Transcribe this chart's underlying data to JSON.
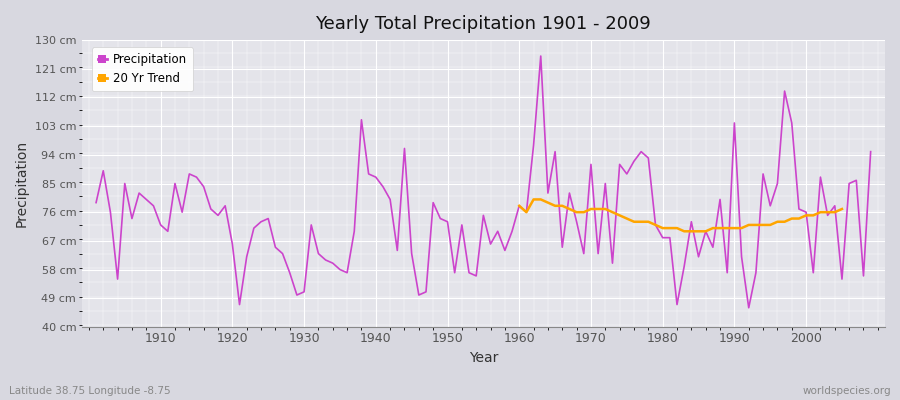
{
  "title": "Yearly Total Precipitation 1901 - 2009",
  "xlabel": "Year",
  "ylabel": "Precipitation",
  "subtitle": "Latitude 38.75 Longitude -8.75",
  "watermark": "worldspecies.org",
  "precip_color": "#CC44CC",
  "trend_color": "#FFA500",
  "bg_color": "#D8D8E0",
  "plot_bg_color": "#E4E4EA",
  "grid_color": "#FFFFFF",
  "ylim": [
    40,
    130
  ],
  "yticks": [
    40,
    49,
    58,
    67,
    76,
    85,
    94,
    103,
    112,
    121,
    130
  ],
  "ytick_labels": [
    "40 cm",
    "49 cm",
    "58 cm",
    "67 cm",
    "76 cm",
    "85 cm",
    "94 cm",
    "103 cm",
    "112 cm",
    "121 cm",
    "130 cm"
  ],
  "xlim_left": 1899,
  "xlim_right": 2011,
  "years": [
    1901,
    1902,
    1903,
    1904,
    1905,
    1906,
    1907,
    1908,
    1909,
    1910,
    1911,
    1912,
    1913,
    1914,
    1915,
    1916,
    1917,
    1918,
    1919,
    1920,
    1921,
    1922,
    1923,
    1924,
    1925,
    1926,
    1927,
    1928,
    1929,
    1930,
    1931,
    1932,
    1933,
    1934,
    1935,
    1936,
    1937,
    1938,
    1939,
    1940,
    1941,
    1942,
    1943,
    1944,
    1945,
    1946,
    1947,
    1948,
    1949,
    1950,
    1951,
    1952,
    1953,
    1954,
    1955,
    1956,
    1957,
    1958,
    1959,
    1960,
    1961,
    1962,
    1963,
    1964,
    1965,
    1966,
    1967,
    1968,
    1969,
    1970,
    1971,
    1972,
    1973,
    1974,
    1975,
    1976,
    1977,
    1978,
    1979,
    1980,
    1981,
    1982,
    1983,
    1984,
    1985,
    1986,
    1987,
    1988,
    1989,
    1990,
    1991,
    1992,
    1993,
    1994,
    1995,
    1996,
    1997,
    1998,
    1999,
    2000,
    2001,
    2002,
    2003,
    2004,
    2005,
    2006,
    2007,
    2008,
    2009
  ],
  "precipitation": [
    79,
    89,
    76,
    55,
    85,
    74,
    82,
    80,
    78,
    72,
    70,
    85,
    76,
    88,
    87,
    84,
    77,
    75,
    78,
    66,
    47,
    62,
    71,
    73,
    74,
    65,
    63,
    57,
    50,
    51,
    72,
    63,
    61,
    60,
    58,
    57,
    70,
    105,
    88,
    87,
    84,
    80,
    64,
    96,
    63,
    50,
    51,
    79,
    74,
    73,
    57,
    72,
    57,
    56,
    75,
    66,
    70,
    64,
    70,
    78,
    76,
    97,
    125,
    82,
    95,
    65,
    82,
    73,
    63,
    91,
    63,
    85,
    60,
    91,
    88,
    92,
    95,
    93,
    72,
    68,
    68,
    47,
    59,
    73,
    62,
    70,
    65,
    80,
    57,
    104,
    62,
    46,
    57,
    88,
    78,
    85,
    114,
    104,
    77,
    76,
    57,
    87,
    75,
    78,
    55,
    85,
    86,
    56,
    95
  ],
  "trend_years": [
    1960,
    1961,
    1962,
    1963,
    1964,
    1965,
    1966,
    1967,
    1968,
    1969,
    1970,
    1971,
    1972,
    1973,
    1974,
    1975,
    1976,
    1977,
    1978,
    1979,
    1980,
    1981,
    1982,
    1983,
    1984,
    1985,
    1986,
    1987,
    1988,
    1989,
    1990,
    1991,
    1992,
    1993,
    1994,
    1995,
    1996,
    1997,
    1998,
    1999,
    2000,
    2001,
    2002,
    2003,
    2004,
    2005
  ],
  "trend_values": [
    78,
    76,
    80,
    80,
    79,
    78,
    78,
    77,
    76,
    76,
    77,
    77,
    77,
    76,
    75,
    74,
    73,
    73,
    73,
    72,
    71,
    71,
    71,
    70,
    70,
    70,
    70,
    71,
    71,
    71,
    71,
    71,
    72,
    72,
    72,
    72,
    73,
    73,
    74,
    74,
    75,
    75,
    76,
    76,
    76,
    77
  ],
  "xtick_years": [
    1910,
    1920,
    1930,
    1940,
    1950,
    1960,
    1970,
    1980,
    1990,
    2000
  ]
}
